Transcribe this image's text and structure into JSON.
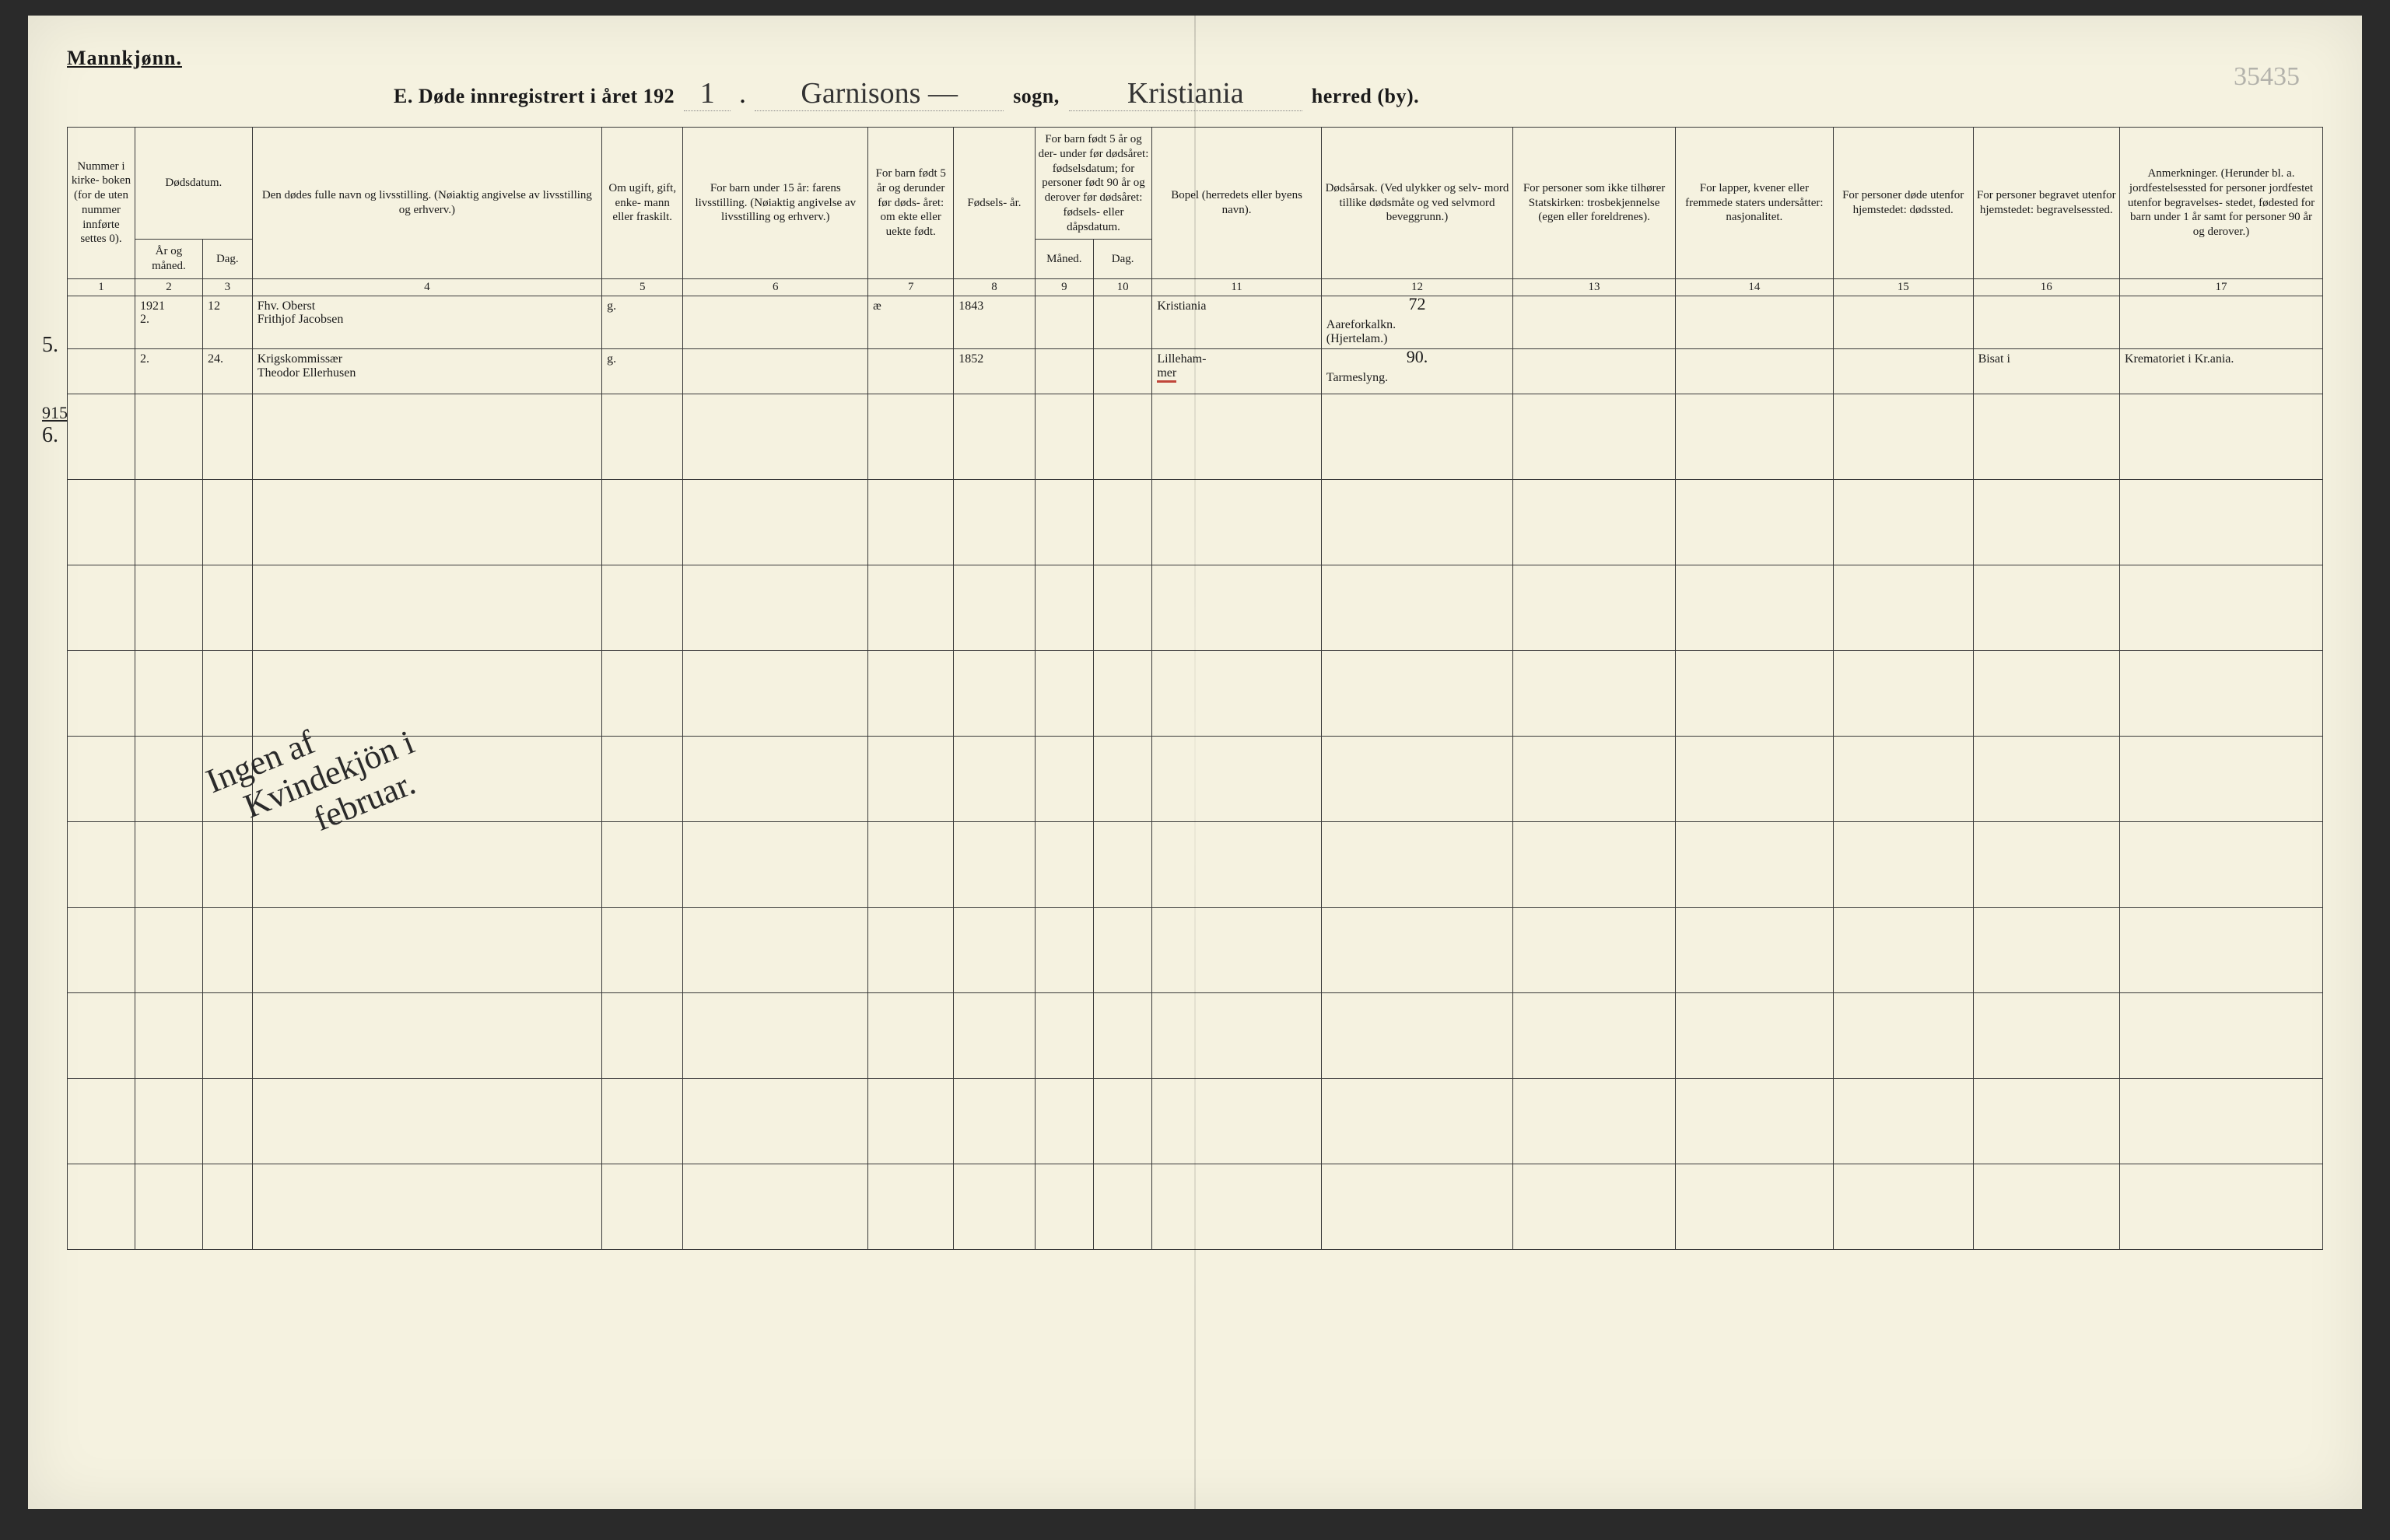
{
  "page": {
    "gender_label": "Mannkjønn.",
    "page_number": "35435",
    "title": {
      "prefix": "E.   Døde innregistrert i året 192",
      "year_suffix": "1",
      "dot": ".",
      "sogn_filled": "Garnisons —",
      "sogn_label": "sogn,",
      "herred_filled": "Kristiania",
      "herred_label": "herred (by)."
    }
  },
  "columns": {
    "c1": "Nummer i kirke- boken (for de uten nummer innførte settes 0).",
    "c2": "År og måned.",
    "c3": "Dag.",
    "c2_3_top": "Dødsdatum.",
    "c4": "Den dødes fulle navn og livsstilling.\n(Nøiaktig angivelse av livsstilling og erhverv.)",
    "c5": "Om ugift, gift, enke- mann eller fraskilt.",
    "c6": "For barn under 15 år:\nfarens livsstilling.\n(Nøiaktig angivelse av livsstilling og erhverv.)",
    "c7": "For barn født 5 år og derunder før døds- året: om ekte eller uekte født.",
    "c8": "Fødsels- år.",
    "c9": "Måned.",
    "c10": "Dag.",
    "c9_10_top": "For barn født 5 år og der- under før dødsåret: fødselsdatum; for personer født 90 år og derover før dødsåret: fødsels- eller dåpsdatum.",
    "c11": "Bopel\n(herredets eller byens navn).",
    "c12": "Dødsårsak.\n(Ved ulykker og selv- mord tillike dødsmåte og ved selvmord beveggrunn.)",
    "c13": "For personer som ikke tilhører Statskirken: trosbekjennelse (egen eller foreldrenes).",
    "c14": "For lapper, kvener eller fremmede staters undersåtter: nasjonalitet.",
    "c15": "For personer døde utenfor hjemstedet:\ndødssted.",
    "c16": "For personer begravet utenfor hjemstedet:\nbegravelsessted.",
    "c17": "Anmerkninger.\n(Herunder bl. a. jordfestelsessted for personer jordfestet utenfor begravelses- stedet, fødested for barn under 1 år samt for personer 90 år og derover.)"
  },
  "colnums": [
    "1",
    "2",
    "3",
    "4",
    "5",
    "6",
    "7",
    "8",
    "9",
    "10",
    "11",
    "12",
    "13",
    "14",
    "15",
    "16",
    "17"
  ],
  "rows": [
    {
      "margin": "5.",
      "c2": "1921\n2.",
      "c3": "12",
      "c4_line1": "Fhv. Oberst",
      "c4_line2": "Frithjof Jacobsen",
      "c5": "g.",
      "c7": "æ",
      "c8": "1843",
      "c11": "Kristiania",
      "c12_super": "72",
      "c12": "Aareforkalkn.\n(Hjertelam.)"
    },
    {
      "margin": "6.",
      "margin_upper": "915",
      "c2": "2.",
      "c3": "24.",
      "c4_line1": "Krigskommissær",
      "c4_line2": "Theodor Ellerhusen",
      "c5": "g.",
      "c8": "1852",
      "c11": "Lilleham-\nmer",
      "c11_redline": true,
      "c12_super": "90.",
      "c12": "Tarmeslyng.",
      "c16": "Bisat i",
      "c17": "Krematoriet i Kr.ania."
    }
  ],
  "diagonal_note": "Ingen af\n   Kvindekjön i\n          februar.",
  "colors": {
    "paper": "#f5f2e0",
    "ink": "#1a1a1a",
    "rule": "#3a3a3a",
    "red": "#c0463a"
  },
  "col_widths_pct": [
    3.0,
    3.0,
    2.2,
    15.5,
    3.6,
    8.2,
    3.8,
    3.6,
    2.6,
    2.6,
    7.5,
    8.5,
    7.2,
    7.0,
    6.2,
    6.5,
    9.0
  ]
}
